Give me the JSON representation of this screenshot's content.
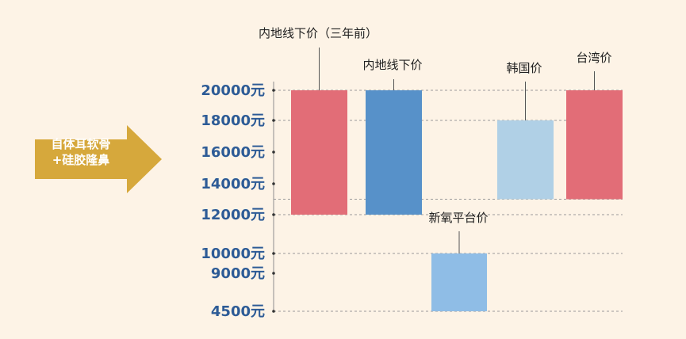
{
  "colors": {
    "background": "#fdf3e6",
    "axis_text": "#2d5b96",
    "arrow": "#d6a83c",
    "bar_red": "#e26d77",
    "bar_blue": "#5791c9",
    "bar_light": "#b0d0e6",
    "bar_mid": "#8fbde6"
  },
  "arrow": {
    "line1": "自体耳软骨",
    "line2": "+硅胶隆鼻"
  },
  "chart_data": {
    "type": "bar",
    "subtype": "floating-range",
    "y_ticks": [
      "20000元",
      "18000元",
      "16000元",
      "14000元",
      "12000元",
      "10000元",
      "9000元",
      "4500元"
    ],
    "y_tick_values": [
      20000,
      18000,
      16000,
      14000,
      12000,
      10000,
      9000,
      4500
    ],
    "bars": [
      {
        "name": "内地线下价（三年前）",
        "low": 12000,
        "high": 20000,
        "color": "#e26d77"
      },
      {
        "name": "内地线下价",
        "low": 12000,
        "high": 20000,
        "color": "#5791c9"
      },
      {
        "name": "新氧平台价",
        "low": 4500,
        "high": 10000,
        "color": "#8fbde6"
      },
      {
        "name": "韩国价",
        "low": 13000,
        "high": 18000,
        "color": "#b0d0e6"
      },
      {
        "name": "台湾价",
        "low": 13000,
        "high": 20000,
        "color": "#e26d77"
      }
    ],
    "grid": "dashed"
  }
}
